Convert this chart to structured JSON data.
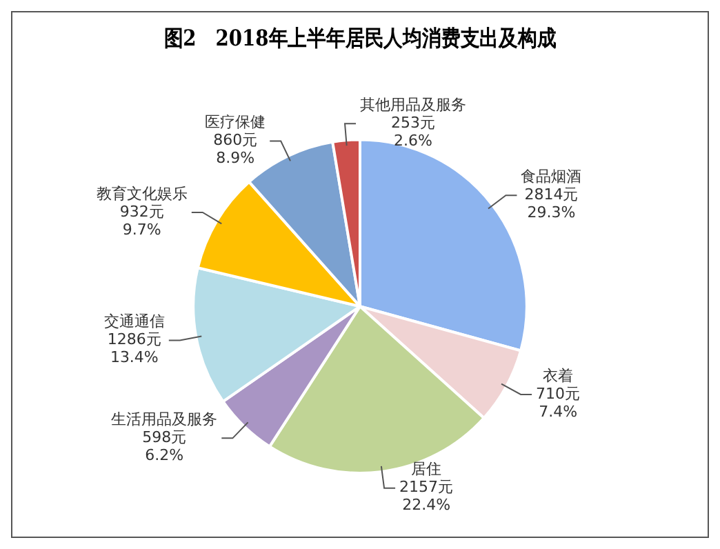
{
  "chart_data": {
    "type": "pie",
    "title": "图2　2018年上半年居民人均消费支出及构成",
    "categories": [
      "食品烟酒",
      "衣着",
      "居住",
      "生活用品及服务",
      "交通通信",
      "教育文化娱乐",
      "医疗保健",
      "其他用品及服务"
    ],
    "values": [
      2814,
      710,
      2157,
      598,
      1286,
      932,
      860,
      253
    ],
    "value_labels": [
      "2814元\n29.3%",
      "710元\n7.4%",
      "2157元\n22.4%",
      "598元\n6.2%",
      "1286元\n13.4%",
      "932元\n9.7%",
      "860元\n8.9%",
      "253元\n2.6%"
    ],
    "colors": [
      "#8db4ef",
      "#f0d3d3",
      "#c0d495",
      "#a995c4",
      "#b5dde8",
      "#ffc000",
      "#7ba1d0",
      "#cd4f4b"
    ],
    "legend": false
  }
}
